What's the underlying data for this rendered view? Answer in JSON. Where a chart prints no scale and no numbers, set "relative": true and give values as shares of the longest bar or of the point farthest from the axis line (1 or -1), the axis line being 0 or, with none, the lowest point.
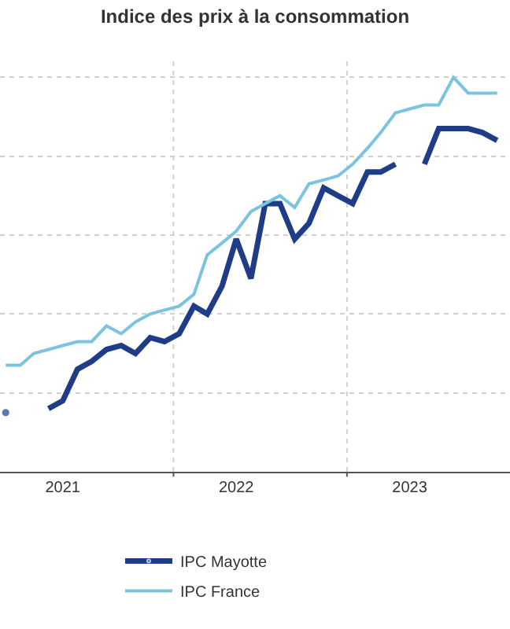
{
  "chart_data": {
    "type": "line",
    "title": "Indice des prix à la consommation",
    "relative": true,
    "x": [
      "2021-01",
      "2021-02",
      "2021-03",
      "2021-04",
      "2021-05",
      "2021-06",
      "2021-07",
      "2021-08",
      "2021-09",
      "2021-10",
      "2021-11",
      "2021-12",
      "2022-01",
      "2022-02",
      "2022-03",
      "2022-04",
      "2022-05",
      "2022-06",
      "2022-07",
      "2022-08",
      "2022-09",
      "2022-10",
      "2022-11",
      "2022-12",
      "2023-01",
      "2023-02",
      "2023-03",
      "2023-04",
      "2023-05",
      "2023-06",
      "2023-07",
      "2023-08",
      "2023-09",
      "2023-10",
      "2023-11"
    ],
    "xlim": [
      "2020-12-20",
      "2023-11-28"
    ],
    "xticks": [
      {
        "value": "2021-05-01",
        "label": "2021"
      },
      {
        "value": "2021-12-20",
        "label": null
      },
      {
        "value": "2022-05-01",
        "label": "2022"
      },
      {
        "value": "2022-12-20",
        "label": null
      },
      {
        "value": "2023-05-01",
        "label": "2023"
      }
    ],
    "series": [
      {
        "name": "IPC Mayotte",
        "color": "#1f3d87",
        "values": [
          0.15,
          null,
          null,
          0.16,
          0.18,
          0.26,
          0.28,
          0.31,
          0.32,
          0.3,
          0.34,
          0.33,
          0.35,
          0.42,
          0.4,
          0.47,
          0.59,
          0.49,
          0.68,
          0.68,
          0.59,
          0.63,
          0.72,
          0.7,
          0.68,
          0.76,
          0.76,
          0.78,
          null,
          0.78,
          0.87,
          0.87,
          0.87,
          0.86,
          0.84
        ]
      },
      {
        "name": "IPC France",
        "color": "#7cc3e0",
        "values": [
          0.27,
          0.27,
          0.3,
          0.31,
          0.32,
          0.33,
          0.33,
          0.37,
          0.35,
          0.38,
          0.4,
          0.41,
          0.42,
          0.45,
          0.55,
          0.58,
          0.61,
          0.66,
          0.68,
          0.7,
          0.67,
          0.73,
          0.74,
          0.75,
          0.78,
          0.82,
          0.86,
          0.91,
          0.92,
          0.93,
          0.93,
          1.0,
          0.96,
          0.96,
          0.96
        ]
      }
    ],
    "grid": true,
    "legend": "bottom",
    "tick_labels": "x",
    "marker": "none",
    "line_style": "solid"
  }
}
